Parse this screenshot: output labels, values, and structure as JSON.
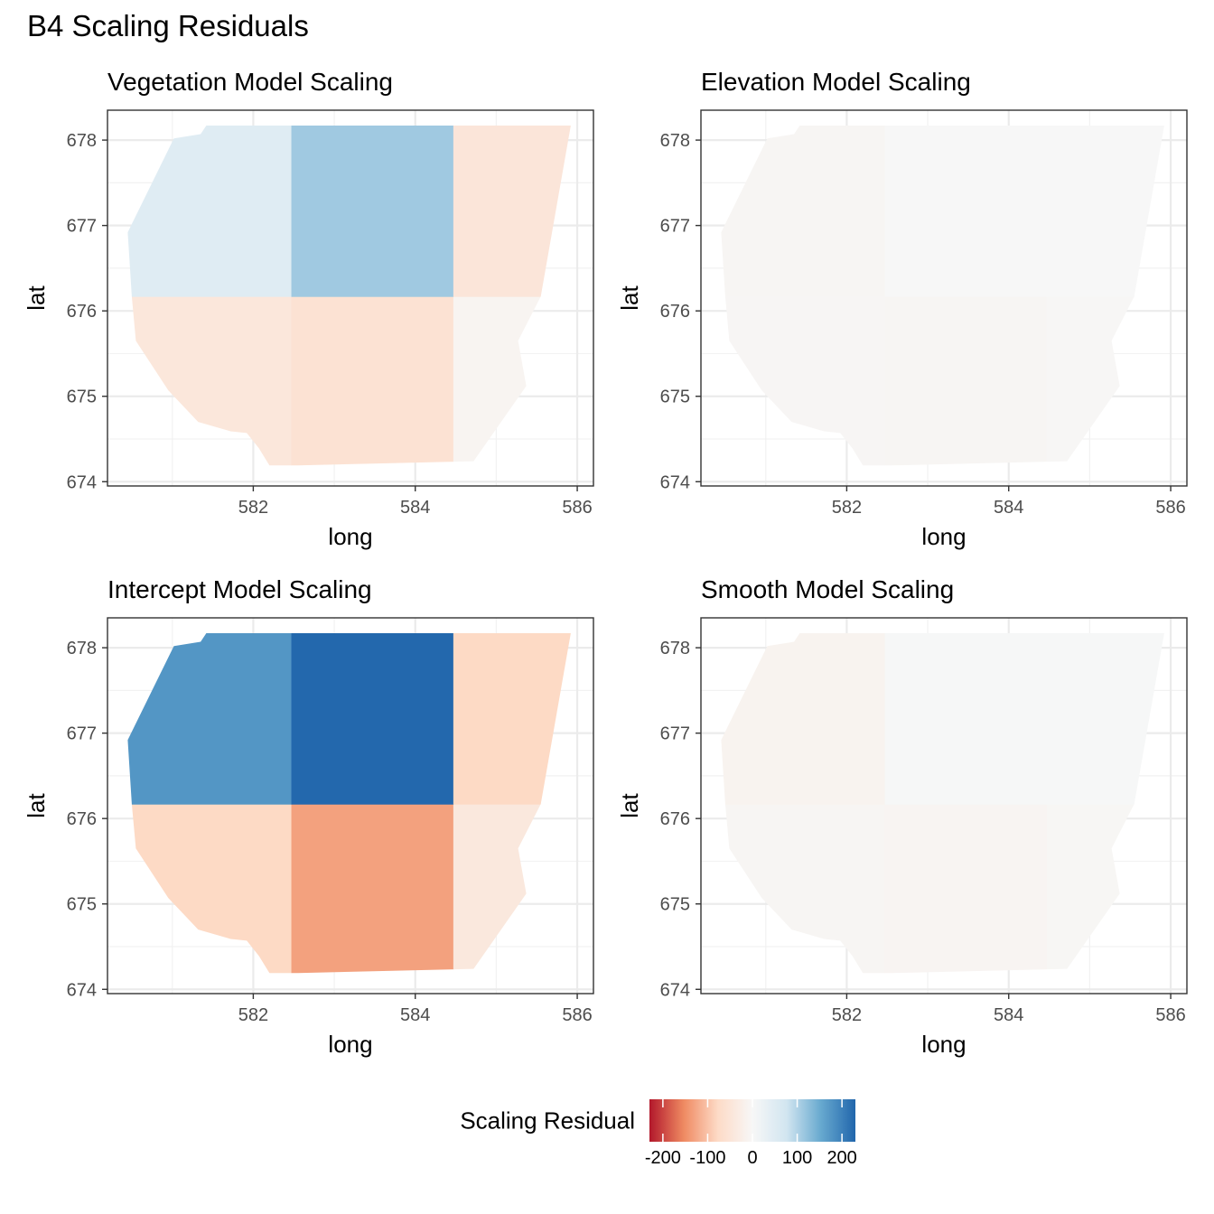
{
  "title": "B4 Scaling Residuals",
  "chart_data": [
    {
      "type": "heatmap",
      "title": "Vegetation Model Scaling",
      "xlabel": "long",
      "ylabel": "lat",
      "xlim": [
        580.2,
        586.2
      ],
      "ylim": [
        673.95,
        678.35
      ],
      "xticks": [
        582,
        584,
        586
      ],
      "yticks": [
        674,
        675,
        676,
        677,
        678
      ],
      "tiles": [
        {
          "col": 0,
          "row": 0,
          "value": -45
        },
        {
          "col": 1,
          "row": 0,
          "value": -58
        },
        {
          "col": 2,
          "row": 0,
          "value": -9
        },
        {
          "col": 0,
          "row": 1,
          "value": 48
        },
        {
          "col": 1,
          "row": 1,
          "value": 112
        },
        {
          "col": 2,
          "row": 1,
          "value": -48
        }
      ]
    },
    {
      "type": "heatmap",
      "title": "Elevation Model Scaling",
      "xlabel": "long",
      "ylabel": "lat",
      "xlim": [
        580.2,
        586.2
      ],
      "ylim": [
        673.95,
        678.35
      ],
      "xticks": [
        582,
        584,
        586
      ],
      "yticks": [
        674,
        675,
        676,
        677,
        678
      ],
      "tiles": [
        {
          "col": 0,
          "row": 0,
          "value": -5
        },
        {
          "col": 1,
          "row": 0,
          "value": -6
        },
        {
          "col": 2,
          "row": 0,
          "value": -3
        },
        {
          "col": 0,
          "row": 1,
          "value": -6
        },
        {
          "col": 1,
          "row": 1,
          "value": 1
        },
        {
          "col": 2,
          "row": 1,
          "value": 1
        }
      ]
    },
    {
      "type": "heatmap",
      "title": "Intercept Model Scaling",
      "xlabel": "long",
      "ylabel": "lat",
      "xlim": [
        580.2,
        586.2
      ],
      "ylim": [
        673.95,
        678.35
      ],
      "xticks": [
        582,
        584,
        586
      ],
      "yticks": [
        674,
        675,
        676,
        677,
        678
      ],
      "tiles": [
        {
          "col": 0,
          "row": 0,
          "value": -78
        },
        {
          "col": 1,
          "row": 0,
          "value": -132
        },
        {
          "col": 2,
          "row": 0,
          "value": -42
        },
        {
          "col": 0,
          "row": 1,
          "value": 175
        },
        {
          "col": 1,
          "row": 1,
          "value": 228
        },
        {
          "col": 2,
          "row": 1,
          "value": -78
        }
      ]
    },
    {
      "type": "heatmap",
      "title": "Smooth Model Scaling",
      "xlabel": "long",
      "ylabel": "lat",
      "xlim": [
        580.2,
        586.2
      ],
      "ylim": [
        673.95,
        678.35
      ],
      "xticks": [
        582,
        584,
        586
      ],
      "yticks": [
        674,
        675,
        676,
        677,
        678
      ],
      "tiles": [
        {
          "col": 0,
          "row": 0,
          "value": -6
        },
        {
          "col": 1,
          "row": 0,
          "value": -8
        },
        {
          "col": 2,
          "row": 0,
          "value": -4
        },
        {
          "col": 0,
          "row": 1,
          "value": -12
        },
        {
          "col": 1,
          "row": 1,
          "value": 2
        },
        {
          "col": 2,
          "row": 1,
          "value": 2
        }
      ]
    }
  ],
  "grid": {
    "col_edges": [
      580.2,
      582.47,
      584.47,
      586.2
    ],
    "row_edges": [
      673.95,
      676.17,
      678.35
    ]
  },
  "region_outline": [
    [
      581.42,
      678.17
    ],
    [
      585.92,
      678.17
    ],
    [
      585.55,
      676.17
    ],
    [
      585.27,
      675.65
    ],
    [
      585.37,
      675.12
    ],
    [
      584.72,
      674.24
    ],
    [
      582.55,
      674.19
    ],
    [
      582.2,
      674.19
    ],
    [
      582.07,
      674.39
    ],
    [
      581.92,
      674.57
    ],
    [
      581.72,
      674.59
    ],
    [
      581.32,
      674.7
    ],
    [
      580.95,
      675.07
    ],
    [
      580.55,
      675.65
    ],
    [
      580.5,
      676.17
    ],
    [
      580.45,
      676.92
    ],
    [
      581.02,
      678.02
    ],
    [
      581.35,
      678.07
    ]
  ],
  "legend": {
    "title": "Scaling Residual",
    "min": -230,
    "max": 230,
    "ticks": [
      {
        "value": -200,
        "label": "-200"
      },
      {
        "value": -100,
        "label": "-100"
      },
      {
        "value": 0,
        "label": "0"
      },
      {
        "value": 100,
        "label": "100"
      },
      {
        "value": 200,
        "label": "200"
      }
    ],
    "palette": [
      "#b2182b",
      "#ef8a62",
      "#fddbc7",
      "#f7f7f7",
      "#d1e5f0",
      "#67a9cf",
      "#2166ac"
    ],
    "placement": "bottom"
  }
}
